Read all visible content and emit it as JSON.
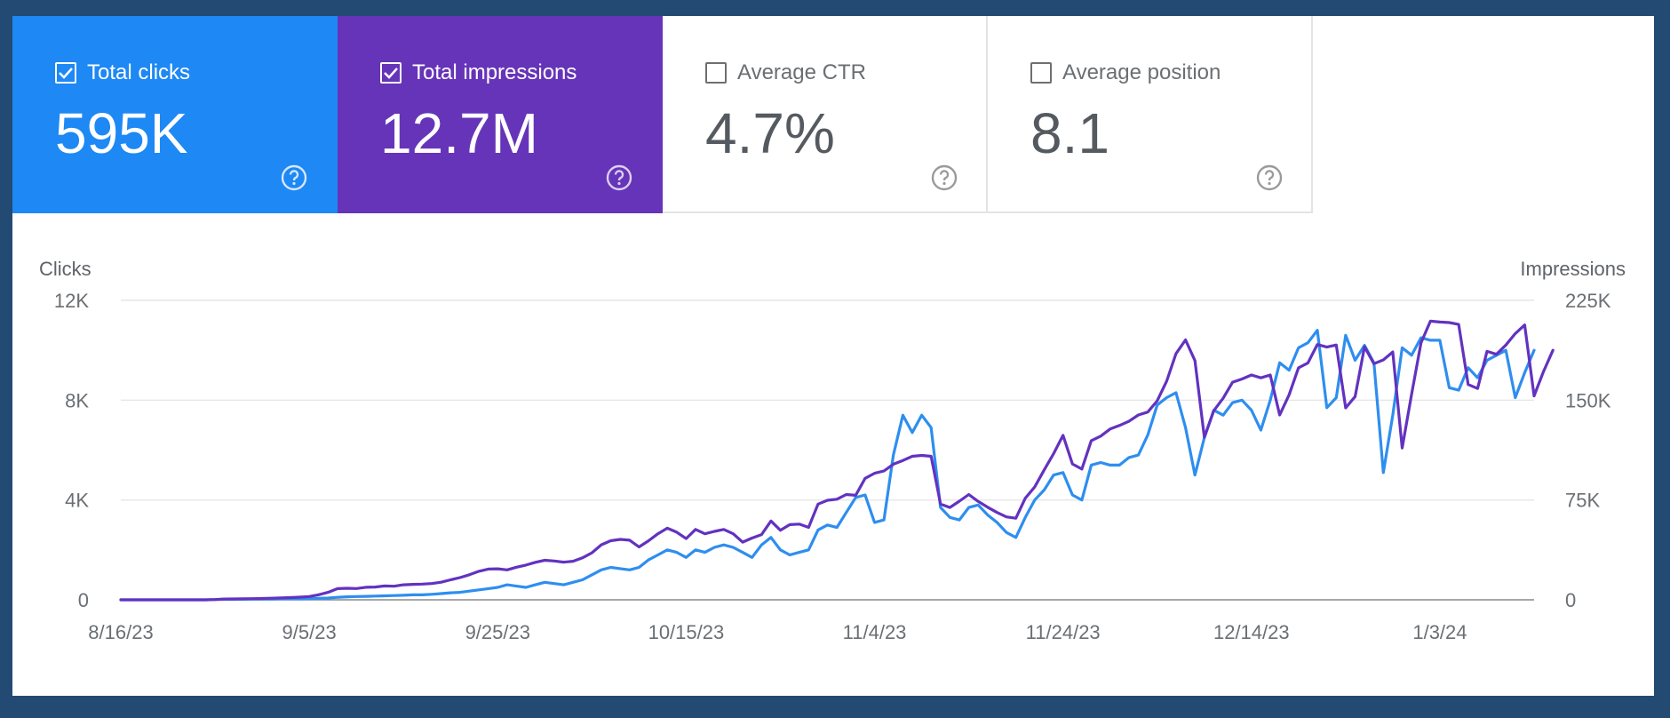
{
  "metrics": [
    {
      "label": "Total clicks",
      "value": "595K",
      "checked": true,
      "bg": "#1e88f4",
      "help_icon": "help-circle-icon"
    },
    {
      "label": "Total impressions",
      "value": "12.7M",
      "checked": true,
      "bg": "#6634b8",
      "help_icon": "help-circle-icon"
    },
    {
      "label": "Average CTR",
      "value": "4.7%",
      "checked": false,
      "bg": "#ffffff",
      "help_icon": "help-circle-icon"
    },
    {
      "label": "Average position",
      "value": "8.1",
      "checked": false,
      "bg": "#ffffff",
      "help_icon": "help-circle-icon"
    }
  ],
  "chart_data": {
    "type": "line",
    "ylabel_left": "Clicks",
    "ylabel_right": "Impressions",
    "ylim_left": [
      0,
      12000
    ],
    "ylim_right": [
      0,
      225000
    ],
    "yticks_left": [
      "12K",
      "8K",
      "4K",
      "0"
    ],
    "yticks_right": [
      "225K",
      "150K",
      "75K",
      "0"
    ],
    "xticks": [
      "8/16/23",
      "9/5/23",
      "9/25/23",
      "10/15/23",
      "11/4/23",
      "11/24/23",
      "12/14/23",
      "1/3/24"
    ],
    "grid": true,
    "day_index_of_xticks": [
      0,
      20,
      40,
      60,
      80,
      100,
      120,
      140
    ],
    "series": [
      {
        "name": "Clicks",
        "axis": "left",
        "color": "#2e8ef0",
        "values": [
          0,
          0,
          0,
          0,
          0,
          0,
          0,
          0,
          0,
          0,
          10,
          20,
          20,
          20,
          30,
          30,
          30,
          40,
          40,
          40,
          50,
          60,
          70,
          100,
          120,
          130,
          140,
          150,
          160,
          170,
          180,
          200,
          200,
          220,
          250,
          280,
          300,
          350,
          400,
          450,
          500,
          600,
          550,
          500,
          600,
          700,
          650,
          600,
          700,
          800,
          1000,
          1200,
          1300,
          1250,
          1200,
          1300,
          1600,
          1800,
          2000,
          1900,
          1700,
          2000,
          1900,
          2100,
          2200,
          2100,
          1900,
          1700,
          2200,
          2500,
          2000,
          1800,
          1900,
          2000,
          2800,
          3000,
          2900,
          3500,
          4100,
          4200,
          3100,
          3200,
          5800,
          7400,
          6700,
          7400,
          6900,
          3700,
          3300,
          3200,
          3700,
          3800,
          3400,
          3100,
          2700,
          2500,
          3300,
          4000,
          4400,
          5000,
          5100,
          4200,
          4000,
          5400,
          5500,
          5400,
          5400,
          5700,
          5800,
          6600,
          7800,
          8100,
          8300,
          6900,
          5000,
          6500,
          7600,
          7400,
          7900,
          8000,
          7600,
          6800,
          8000,
          9500,
          9200,
          10100,
          10300,
          10800,
          7700,
          8100,
          10600,
          9600,
          10200,
          9500,
          5100,
          7400,
          10100,
          9800,
          10500,
          10400,
          10400,
          8500,
          8400,
          9300,
          8900,
          9600,
          9800,
          10000,
          8100,
          9100,
          10000
        ]
      },
      {
        "name": "Impressions",
        "axis": "right",
        "color": "#6232c0",
        "values": [
          0,
          0,
          0,
          0,
          0,
          0,
          0,
          0,
          0,
          0,
          200,
          600,
          700,
          800,
          900,
          1000,
          1200,
          1400,
          1700,
          2000,
          2500,
          3800,
          5600,
          8400,
          8700,
          8500,
          9400,
          9600,
          10400,
          10200,
          11300,
          11600,
          11800,
          12200,
          13200,
          15000,
          16700,
          18800,
          21400,
          23100,
          23300,
          22500,
          24500,
          26100,
          28200,
          29700,
          29200,
          28300,
          29000,
          31500,
          35300,
          41300,
          44400,
          45400,
          44800,
          39700,
          44300,
          49600,
          53800,
          50800,
          46000,
          52900,
          49600,
          51400,
          52900,
          49600,
          43300,
          46400,
          49000,
          59200,
          52300,
          56500,
          56900,
          54400,
          71900,
          74800,
          75600,
          79100,
          78500,
          91300,
          95100,
          96800,
          101900,
          104700,
          107800,
          108500,
          107800,
          72000,
          69400,
          74100,
          79100,
          73900,
          69600,
          65600,
          62300,
          61300,
          76300,
          84800,
          97600,
          109800,
          123600,
          102100,
          98200,
          119600,
          123000,
          128300,
          131000,
          134100,
          138900,
          141100,
          149500,
          164200,
          185000,
          195300,
          179700,
          122100,
          142100,
          151500,
          163500,
          165900,
          168900,
          166800,
          168900,
          138900,
          154000,
          174300,
          178000,
          191800,
          189900,
          191500,
          144200,
          152700,
          190100,
          177400,
          180300,
          186200,
          114100,
          154400,
          193100,
          209400,
          208700,
          208300,
          206900,
          161800,
          158800,
          186700,
          184500,
          191400,
          200000,
          206500,
          153200,
          171500,
          187500
        ]
      }
    ]
  }
}
